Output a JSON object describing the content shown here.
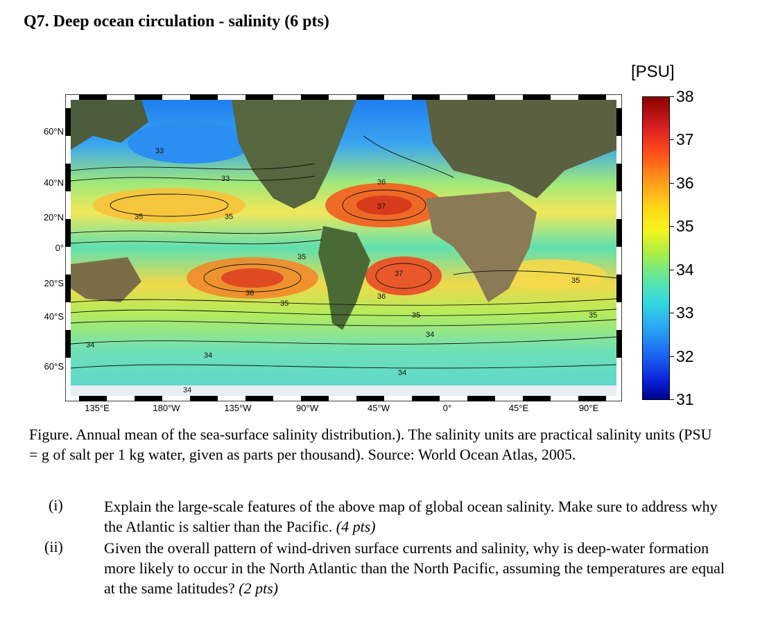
{
  "title": "Q7. Deep ocean circulation - salinity (6 pts)",
  "map": {
    "y_labels": [
      "60°N",
      "40°N",
      "20°N",
      "0°",
      "20°S",
      "40°S",
      "60°S"
    ],
    "x_labels": [
      "135°E",
      "180°W",
      "135°W",
      "90°W",
      "45°W",
      "0°",
      "45°E",
      "90°E"
    ],
    "contour_labels": [
      "33",
      "33",
      "35",
      "35",
      "35",
      "36",
      "36",
      "37",
      "37",
      "36",
      "35",
      "35",
      "35",
      "35",
      "34",
      "34",
      "34",
      "34",
      "34"
    ],
    "colors": {
      "land": "#4a5a3a",
      "ocean_mid": "#7fe08a",
      "high": "#d92020",
      "low": "#1a5ff0"
    }
  },
  "colorbar": {
    "unit": "[PSU]",
    "ticks": [
      "38",
      "37",
      "36",
      "35",
      "34",
      "33",
      "32",
      "31"
    ]
  },
  "caption": "Figure. Annual mean of the sea-surface salinity distribution.). The salinity units are practical salinity units (PSU = g of salt per 1 kg water, given as parts per thousand). Source: World Ocean Atlas, 2005.",
  "questions": [
    {
      "num": "(i)",
      "text": "Explain the large-scale features of the above map of global ocean salinity. Make sure to address why the Atlantic is saltier than the Pacific.",
      "pts": "(4 pts)"
    },
    {
      "num": "(ii)",
      "text": "Given the overall pattern of wind-driven surface currents and salinity, why is deep-water formation more likely to occur in the North Atlantic than the North Pacific, assuming the temperatures are equal at the same latitudes?",
      "pts": "(2 pts)"
    }
  ]
}
